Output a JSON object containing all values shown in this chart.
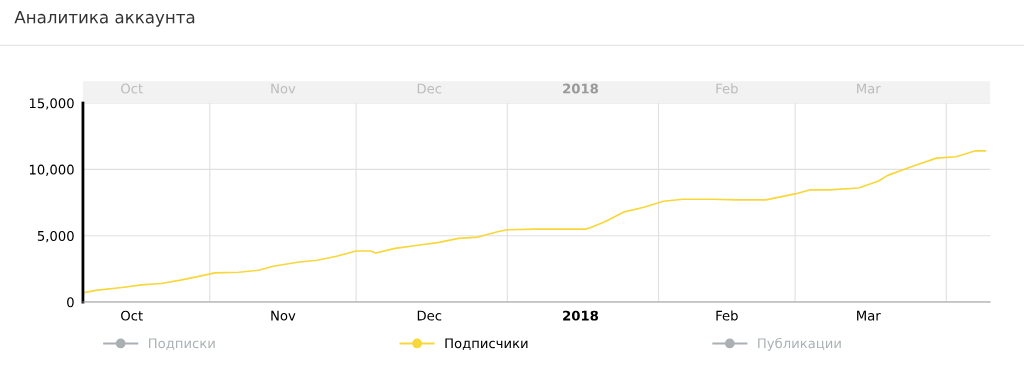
{
  "chart_data": {
    "type": "line",
    "title": "Аналитика аккаунта",
    "x": [
      "2017-10-06",
      "2017-10-09",
      "2017-10-14",
      "2017-10-18",
      "2017-10-22",
      "2017-10-26",
      "2017-10-30",
      "2017-11-02",
      "2017-11-07",
      "2017-11-11",
      "2017-11-14",
      "2017-11-19",
      "2017-11-23",
      "2017-11-27",
      "2017-12-01",
      "2017-12-04",
      "2017-12-05",
      "2017-12-09",
      "2017-12-14",
      "2017-12-18",
      "2017-12-22",
      "2017-12-26",
      "2017-12-30",
      "2018-01-01",
      "2018-01-07",
      "2018-01-17",
      "2018-01-18",
      "2018-01-21",
      "2018-01-25",
      "2018-01-29",
      "2018-02-02",
      "2018-02-06",
      "2018-02-12",
      "2018-02-17",
      "2018-02-23",
      "2018-03-01",
      "2018-03-04",
      "2018-03-08",
      "2018-03-14",
      "2018-03-18",
      "2018-03-20",
      "2018-03-23",
      "2018-03-26",
      "2018-03-30",
      "2018-04-03",
      "2018-04-07",
      "2018-04-09"
    ],
    "series": [
      {
        "name": "Подписки",
        "color": "#aab0b3",
        "values": [
          null,
          null,
          null,
          null,
          null,
          null,
          null,
          null,
          null,
          null,
          null,
          null,
          null,
          null,
          null,
          null,
          null,
          null,
          null,
          null,
          null,
          null,
          null,
          null,
          null,
          null,
          null,
          null,
          null,
          null,
          null,
          null,
          null,
          null,
          null,
          null,
          null,
          null,
          null,
          null,
          null,
          null,
          null,
          null,
          null,
          null,
          null
        ]
      },
      {
        "name": "Подписчики",
        "color": "#f8d73a",
        "values": [
          700,
          900,
          1100,
          1300,
          1400,
          1650,
          1950,
          2200,
          2250,
          2400,
          2700,
          3000,
          3150,
          3450,
          3850,
          3850,
          3700,
          4050,
          4300,
          4500,
          4800,
          4900,
          5300,
          5450,
          5500,
          5500,
          5600,
          6050,
          6800,
          7150,
          7600,
          7750,
          7750,
          7700,
          7700,
          8150,
          8450,
          8450,
          8600,
          9100,
          9550,
          9950,
          10350,
          10850,
          10950,
          11400,
          11400
        ]
      },
      {
        "name": "Публикации",
        "color": "#aab0b3",
        "values": [
          null,
          null,
          null,
          null,
          null,
          null,
          null,
          null,
          null,
          null,
          null,
          null,
          null,
          null,
          null,
          null,
          null,
          null,
          null,
          null,
          null,
          null,
          null,
          null,
          null,
          null,
          null,
          null,
          null,
          null,
          null,
          null,
          null,
          null,
          null,
          null,
          null,
          null,
          null,
          null,
          null,
          null,
          null,
          null,
          null,
          null,
          null
        ]
      }
    ],
    "xlim": [
      "2017-10-06",
      "2018-04-10"
    ],
    "xticks": [
      {
        "value": "2017-10-16",
        "label": "Oct"
      },
      {
        "value": "2017-11-01",
        "label": null
      },
      {
        "value": "2017-11-16",
        "label": "Nov"
      },
      {
        "value": "2017-12-01",
        "label": null
      },
      {
        "value": "2017-12-16",
        "label": "Dec"
      },
      {
        "value": "2018-01-01",
        "label": null
      },
      {
        "value": "2018-01-16",
        "label": "2018"
      },
      {
        "value": "2018-02-01",
        "label": null
      },
      {
        "value": "2018-02-15",
        "label": "Feb"
      },
      {
        "value": "2018-03-01",
        "label": null
      },
      {
        "value": "2018-03-16",
        "label": "Mar"
      },
      {
        "value": "2018-04-01",
        "label": null
      }
    ],
    "x2lim": [
      "2017-10-06",
      "2018-04-10"
    ],
    "x2ticks": [
      {
        "value": "2017-10-16",
        "label": "Oct"
      },
      {
        "value": "2017-11-16",
        "label": "Nov"
      },
      {
        "value": "2017-12-16",
        "label": "Dec"
      },
      {
        "value": "2018-01-16",
        "label": "2018"
      },
      {
        "value": "2018-02-15",
        "label": "Feb"
      },
      {
        "value": "2018-03-16",
        "label": "Mar"
      }
    ],
    "ylim": [
      0,
      15000
    ],
    "yticks": [
      0,
      {
        "value": 5000,
        "label": "5,000"
      },
      {
        "value": 10000,
        "label": "10,000"
      },
      {
        "value": 15000,
        "label": "15,000"
      }
    ],
    "grid": true,
    "legend": "bottom"
  }
}
